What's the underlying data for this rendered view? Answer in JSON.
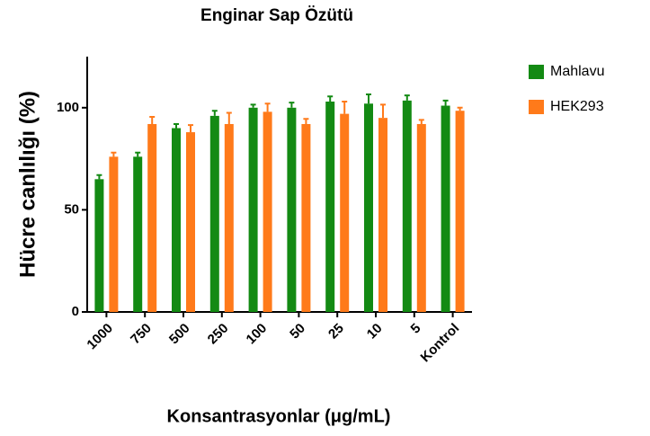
{
  "chart_data": {
    "type": "bar",
    "title": "Enginar Sap Özütü",
    "xlabel": "Konsantrasyonlar (μg/mL)",
    "ylabel": "Hücre canlılığı (%)",
    "categories": [
      "1000",
      "750",
      "500",
      "250",
      "100",
      "50",
      "25",
      "10",
      "5",
      "Kontrol"
    ],
    "series": [
      {
        "name": "Mahlavu",
        "color": "#138a13",
        "values": [
          65,
          76,
          90,
          96,
          100,
          100,
          103,
          102,
          103.5,
          101
        ],
        "errors": [
          2,
          2,
          2,
          2.5,
          1.5,
          2.5,
          2.5,
          4.5,
          2.5,
          2.5
        ]
      },
      {
        "name": "HEK293",
        "color": "#ff7a1a",
        "values": [
          76,
          92,
          88,
          92,
          98,
          92,
          97,
          95,
          92,
          98.5
        ],
        "errors": [
          2,
          3.5,
          3.5,
          5.5,
          4,
          2.5,
          6,
          6.5,
          2,
          1.5
        ]
      }
    ],
    "ylim": [
      0,
      125
    ],
    "yticks": [
      0,
      50,
      100
    ],
    "grid": false,
    "legend": "right"
  }
}
